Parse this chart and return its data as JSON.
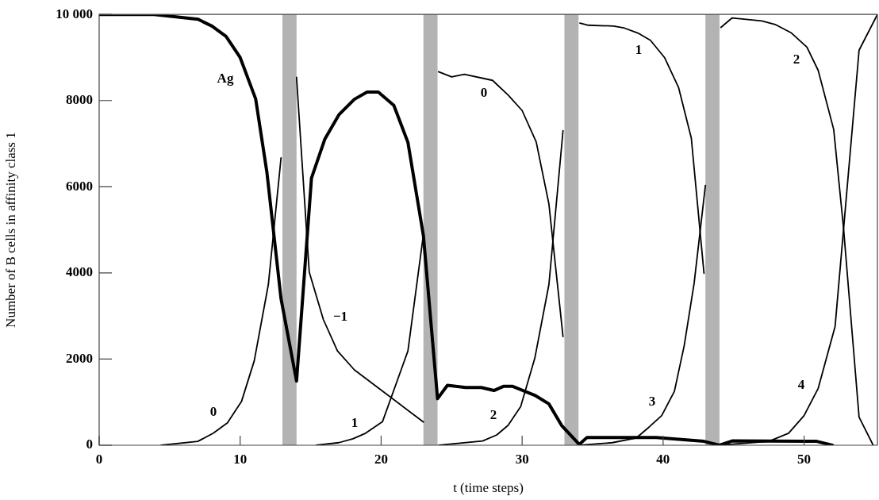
{
  "chart_data": {
    "type": "line",
    "xlabel": "t (time steps)",
    "ylabel": "Number of B cells in affinity class 1",
    "xlim": [
      0,
      55.2
    ],
    "ylim": [
      0,
      10000
    ],
    "xticks": [
      0,
      10,
      20,
      30,
      40,
      50
    ],
    "yticks": [
      0,
      2000,
      4000,
      6000,
      8000,
      {
        "value": 10000,
        "label": "10 000"
      }
    ],
    "grid": false,
    "legend": false,
    "marker": "none",
    "line_style": "solid",
    "bands": [
      {
        "axis": "x",
        "from": 13,
        "to": 14,
        "color": "#b3b3b3"
      },
      {
        "axis": "x",
        "from": 23,
        "to": 24,
        "color": "#b3b3b3"
      },
      {
        "axis": "x",
        "from": 33,
        "to": 34,
        "color": "#b3b3b3"
      },
      {
        "axis": "x",
        "from": 43,
        "to": 44,
        "color": "#b3b3b3"
      }
    ],
    "series": [
      {
        "name": "Ag",
        "color": "#000000",
        "x": [
          0,
          3.9,
          7,
          8,
          9,
          10,
          11.1,
          11.9,
          12.9,
          14,
          15.06,
          16,
          17,
          18.1,
          19,
          19.8,
          20.9,
          21.9,
          23,
          24,
          24.7,
          26,
          27.1,
          28,
          28.7,
          29.3,
          30.9,
          31.9,
          32.8,
          34.05,
          34.6,
          39.5,
          42.9,
          44,
          44.9,
          50.9,
          52
        ],
        "values": [
          10000,
          10000,
          9890,
          9730,
          9490,
          9000,
          8040,
          6330,
          3400,
          1490,
          6200,
          7100,
          7670,
          8030,
          8200,
          8200,
          7890,
          7030,
          4860,
          1080,
          1390,
          1340,
          1340,
          1270,
          1370,
          1370,
          1160,
          960,
          460,
          20,
          180,
          180,
          90,
          0,
          100,
          90,
          0
        ]
      },
      {
        "name": "0",
        "color": "#000000",
        "x": [
          4.4,
          7,
          8.1,
          9.1,
          10.1,
          11,
          12,
          12.9
        ],
        "values": [
          0,
          90,
          280,
          520,
          1020,
          1960,
          3730,
          6670
        ]
      },
      {
        "name": "−1",
        "color": "#000000",
        "x": [
          14,
          14.9,
          15.9,
          16.9,
          18.1,
          23
        ],
        "values": [
          8540,
          4020,
          2920,
          2190,
          1750,
          540
        ]
      },
      {
        "name": "1",
        "color": "#000000",
        "x": [
          15.4,
          17,
          18,
          18.9,
          20.1,
          21.9,
          23
        ],
        "values": [
          0,
          60,
          150,
          280,
          550,
          2190,
          4900
        ]
      },
      {
        "name": "0",
        "color": "#000000",
        "x": [
          24.07,
          25,
          25.9,
          27.9,
          29,
          30,
          31,
          31.9,
          32.9
        ],
        "values": [
          8670,
          8550,
          8610,
          8470,
          8130,
          7770,
          7040,
          5600,
          2520
        ]
      },
      {
        "name": "2",
        "color": "#000000",
        "x": [
          24.1,
          27.2,
          28.2,
          29,
          29.9,
          30.9,
          31.9,
          32.9
        ],
        "values": [
          0,
          100,
          240,
          460,
          900,
          2020,
          3730,
          7300
        ]
      },
      {
        "name": "1",
        "color": "#000000",
        "x": [
          34.1,
          34.7,
          36.5,
          37.2,
          38.2,
          39.1,
          40.1,
          41.1,
          42,
          42.9
        ],
        "values": [
          9800,
          9750,
          9730,
          9690,
          9570,
          9400,
          9000,
          8300,
          7130,
          3990
        ]
      },
      {
        "name": "3",
        "color": "#000000",
        "x": [
          34.1,
          36.4,
          38.1,
          39,
          39.9,
          40.8,
          41.5,
          42.2,
          43
        ],
        "values": [
          0,
          60,
          170,
          420,
          690,
          1250,
          2320,
          3760,
          6030
        ]
      },
      {
        "name": "2",
        "color": "#000000",
        "x": [
          44.1,
          44.9,
          47,
          48,
          49.1,
          50.2,
          51,
          52.1,
          52.8,
          53.9,
          54.9
        ],
        "values": [
          9700,
          9920,
          9850,
          9760,
          9570,
          9240,
          8700,
          7330,
          5030,
          650,
          0
        ]
      },
      {
        "name": "4",
        "color": "#000000",
        "x": [
          44,
          47.5,
          48.9,
          50,
          51,
          52.2,
          53.9,
          55.2
        ],
        "values": [
          0,
          90,
          280,
          690,
          1320,
          2760,
          9170,
          10000
        ]
      }
    ]
  }
}
